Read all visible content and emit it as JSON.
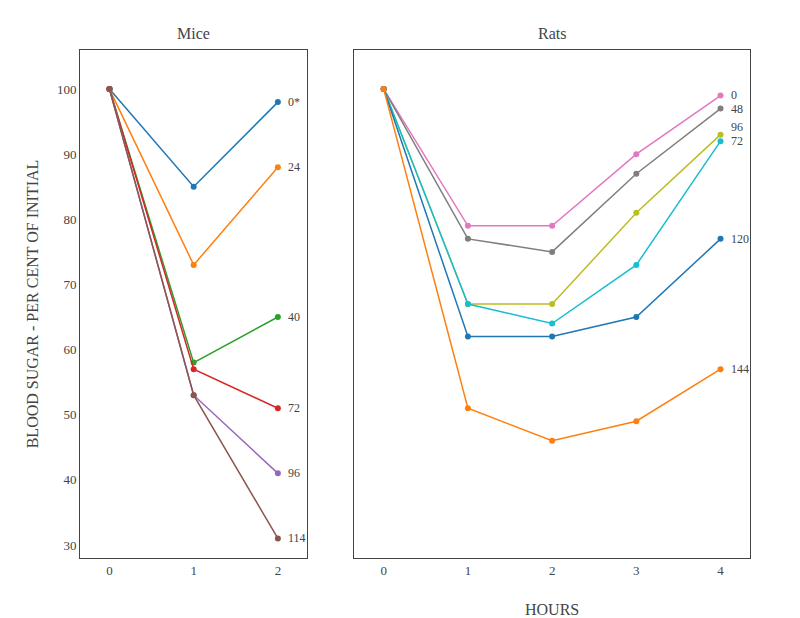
{
  "chart_data": [
    {
      "type": "line",
      "title": "Mice",
      "marker": "circle",
      "grid": false,
      "x": [
        0,
        1,
        2
      ],
      "series": [
        {
          "name": "0*",
          "values": [
            100,
            85,
            98
          ]
        },
        {
          "name": "24",
          "values": [
            100,
            73,
            88
          ]
        },
        {
          "name": "40",
          "values": [
            100,
            58,
            65
          ]
        },
        {
          "name": "72",
          "values": [
            100,
            57,
            51
          ]
        },
        {
          "name": "96",
          "values": [
            100,
            53,
            41
          ]
        },
        {
          "name": "114",
          "values": [
            100,
            53,
            31
          ]
        }
      ],
      "xlim": [
        -0.35,
        2.35
      ],
      "xticks": [
        0,
        1,
        2
      ],
      "ylim": [
        28,
        106
      ],
      "yticks": [
        30,
        40,
        50,
        60,
        70,
        80,
        90,
        100
      ],
      "ylabel": "BLOOD SUGAR - PER CENT OF INITIAL"
    },
    {
      "type": "line",
      "title": "Rats",
      "marker": "circle",
      "grid": false,
      "x": [
        0,
        1,
        2,
        3,
        4
      ],
      "series": [
        {
          "name": "0",
          "values": [
            100,
            79,
            79,
            90,
            99
          ]
        },
        {
          "name": "48",
          "values": [
            100,
            77,
            75,
            87,
            97
          ]
        },
        {
          "name": "96",
          "values": [
            100,
            67,
            67,
            81,
            93
          ]
        },
        {
          "name": "72",
          "values": [
            100,
            67,
            64,
            73,
            92
          ]
        },
        {
          "name": "120",
          "values": [
            100,
            62,
            62,
            65,
            77
          ]
        },
        {
          "name": "144",
          "values": [
            100,
            51,
            46,
            49,
            57
          ]
        }
      ],
      "xlim": [
        -0.35,
        4.35
      ],
      "xticks": [
        0,
        1,
        2,
        3,
        4
      ],
      "ylim": [
        28,
        106
      ],
      "yticks": [
        30,
        40,
        50,
        60,
        70,
        80,
        90,
        100
      ],
      "xlabel": "HOURS"
    }
  ]
}
